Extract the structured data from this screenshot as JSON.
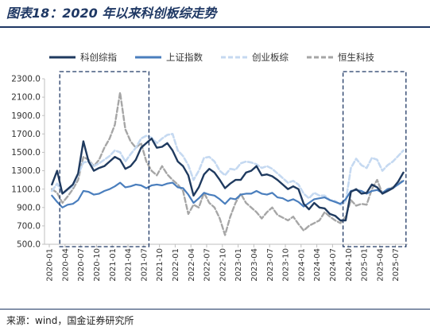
{
  "theme": {
    "accent": "#1f3864",
    "axis": "#bfbfbf"
  },
  "source": "来源：wind，国金证券研究所",
  "chart_data": {
    "type": "line",
    "title": "图表18：2020 年以来科创板综走势",
    "grid": false,
    "legend_position": "top",
    "ylim": [
      500,
      2300
    ],
    "yticks": [
      "500.0",
      "700.0",
      "900.0",
      "1100.0",
      "1300.0",
      "1500.0",
      "1700.0",
      "1900.0",
      "2100.0",
      "2300.0"
    ],
    "xticks": [
      "2020-01",
      "2020-04",
      "2020-07",
      "2020-10",
      "2021-01",
      "2021-04",
      "2021-07",
      "2021-10",
      "2022-01",
      "2022-04",
      "2022-07",
      "2022-10",
      "2023-01",
      "2023-04",
      "2023-07",
      "2023-10",
      "2024-01",
      "2024-04",
      "2024-07",
      "2024-10",
      "2025-01",
      "2025-04",
      "2025-07"
    ],
    "x": [
      "2020-01",
      "2020-02",
      "2020-03",
      "2020-04",
      "2020-05",
      "2020-06",
      "2020-07",
      "2020-08",
      "2020-09",
      "2020-10",
      "2020-11",
      "2020-12",
      "2021-01",
      "2021-02",
      "2021-03",
      "2021-04",
      "2021-05",
      "2021-06",
      "2021-07",
      "2021-08",
      "2021-09",
      "2021-10",
      "2021-11",
      "2021-12",
      "2022-01",
      "2022-02",
      "2022-03",
      "2022-04",
      "2022-05",
      "2022-06",
      "2022-07",
      "2022-08",
      "2022-09",
      "2022-10",
      "2022-11",
      "2022-12",
      "2023-01",
      "2023-02",
      "2023-03",
      "2023-04",
      "2023-05",
      "2023-06",
      "2023-07",
      "2023-08",
      "2023-09",
      "2023-10",
      "2023-11",
      "2023-12",
      "2024-01",
      "2024-02",
      "2024-03",
      "2024-04",
      "2024-05",
      "2024-06",
      "2024-07",
      "2024-08",
      "2024-09",
      "2024-10",
      "2024-11",
      "2024-12",
      "2025-01",
      "2025-02",
      "2025-03",
      "2025-04",
      "2025-05",
      "2025-06",
      "2025-07",
      "2025-08"
    ],
    "series": [
      {
        "name": "科创综指",
        "color": "#1f3a5f",
        "dashed": false,
        "values": [
          1150,
          1300,
          1050,
          1100,
          1150,
          1270,
          1620,
          1400,
          1300,
          1330,
          1350,
          1400,
          1450,
          1420,
          1320,
          1350,
          1420,
          1550,
          1600,
          1650,
          1550,
          1560,
          1600,
          1520,
          1400,
          1350,
          1250,
          1030,
          1120,
          1260,
          1320,
          1280,
          1200,
          1110,
          1160,
          1200,
          1200,
          1280,
          1300,
          1350,
          1250,
          1260,
          1240,
          1200,
          1150,
          1100,
          1130,
          1100,
          940,
          880,
          950,
          900,
          890,
          830,
          810,
          760,
          760,
          1070,
          1100,
          1050,
          1060,
          1150,
          1120,
          1050,
          1080,
          1110,
          1180,
          1280
        ]
      },
      {
        "name": "上证指数",
        "color": "#4a7ebd",
        "dashed": false,
        "values": [
          1030,
          960,
          900,
          930,
          940,
          980,
          1080,
          1070,
          1040,
          1050,
          1080,
          1100,
          1130,
          1170,
          1120,
          1130,
          1150,
          1140,
          1110,
          1140,
          1150,
          1140,
          1160,
          1170,
          1120,
          1110,
          1040,
          950,
          1000,
          1060,
          1040,
          1030,
          990,
          940,
          1000,
          990,
          1040,
          1050,
          1050,
          1080,
          1050,
          1040,
          1060,
          1010,
          1000,
          970,
          990,
          960,
          910,
          950,
          990,
          1000,
          1010,
          980,
          960,
          940,
          990,
          1080,
          1090,
          1080,
          1050,
          1080,
          1090,
          1060,
          1100,
          1110,
          1150,
          1190
        ]
      },
      {
        "name": "创业板综",
        "color": "#c5d9f1",
        "dashed": true,
        "values": [
          1080,
          1160,
          1050,
          1090,
          1130,
          1260,
          1390,
          1400,
          1350,
          1380,
          1420,
          1460,
          1520,
          1500,
          1400,
          1480,
          1550,
          1650,
          1680,
          1660,
          1600,
          1650,
          1690,
          1700,
          1520,
          1460,
          1360,
          1200,
          1300,
          1440,
          1450,
          1400,
          1300,
          1250,
          1320,
          1310,
          1380,
          1400,
          1390,
          1370,
          1330,
          1350,
          1320,
          1270,
          1220,
          1170,
          1190,
          1150,
          1050,
          1000,
          1060,
          1030,
          1030,
          980,
          970,
          930,
          960,
          1330,
          1430,
          1360,
          1330,
          1440,
          1420,
          1300,
          1360,
          1400,
          1460,
          1520
        ]
      },
      {
        "name": "恒生科技",
        "color": "#a6a6a6",
        "dashed": true,
        "values": [
          1100,
          1060,
          950,
          1020,
          1100,
          1200,
          1450,
          1420,
          1350,
          1420,
          1550,
          1650,
          1800,
          2150,
          1750,
          1620,
          1550,
          1600,
          1400,
          1300,
          1250,
          1350,
          1260,
          1200,
          1150,
          1080,
          830,
          930,
          900,
          1060,
          950,
          900,
          780,
          600,
          800,
          950,
          1050,
          950,
          900,
          850,
          780,
          850,
          900,
          820,
          790,
          760,
          800,
          720,
          650,
          700,
          730,
          760,
          850,
          800,
          760,
          730,
          800,
          980,
          920,
          940,
          930,
          1100,
          1200,
          1050,
          1100,
          1120,
          1150,
          1200
        ]
      }
    ],
    "highlight_ranges": [
      {
        "start": "2020-03",
        "end": "2021-07"
      },
      {
        "start": "2024-09",
        "end": "2025-08"
      }
    ]
  }
}
